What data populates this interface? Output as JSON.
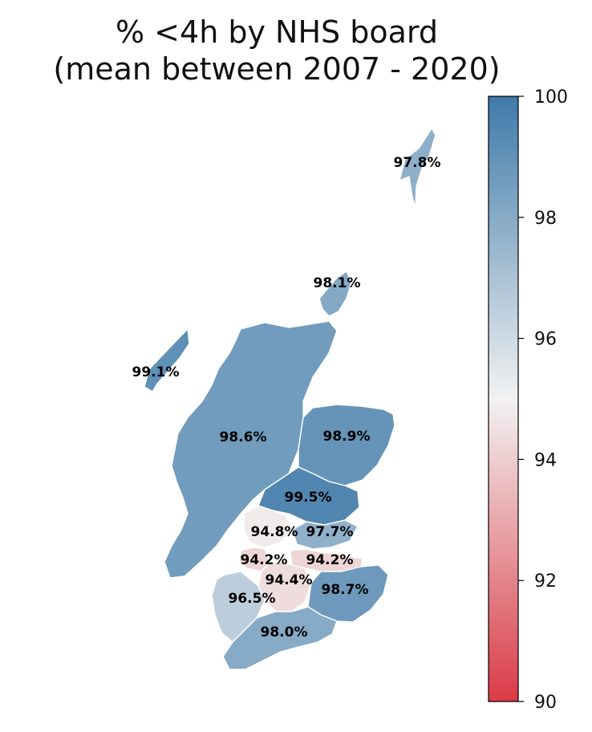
{
  "chart_data": {
    "type": "choropleth",
    "title": "% <4h by NHS board\n(mean between 2007 - 2020)",
    "title_lines": [
      "% <4h by NHS board",
      "(mean between 2007 - 2020)"
    ],
    "value_unit": "%",
    "regions": [
      {
        "value": 97.8,
        "label": "97.8%"
      },
      {
        "value": 98.1,
        "label": "98.1%"
      },
      {
        "value": 99.1,
        "label": "99.1%"
      },
      {
        "value": 98.6,
        "label": "98.6%"
      },
      {
        "value": 98.9,
        "label": "98.9%"
      },
      {
        "value": 99.5,
        "label": "99.5%"
      },
      {
        "value": 94.8,
        "label": "94.8%"
      },
      {
        "value": 97.7,
        "label": "97.7%"
      },
      {
        "value": 94.2,
        "label": "94.2%"
      },
      {
        "value": 94.2,
        "label": "94.2%"
      },
      {
        "value": 94.4,
        "label": "94.4%"
      },
      {
        "value": 98.7,
        "label": "98.7%"
      },
      {
        "value": 96.5,
        "label": "96.5%"
      },
      {
        "value": 98.0,
        "label": "98.0%"
      }
    ],
    "colorbar": {
      "range": [
        90,
        100
      ],
      "ticks": [
        "90",
        "92",
        "94",
        "96",
        "98",
        "100"
      ],
      "tick_values": [
        90,
        92,
        94,
        96,
        98,
        100
      ],
      "colors": {
        "low": "#da3b46",
        "mid": "#f2f2f2",
        "high": "#3f7aa9"
      }
    },
    "grid": false,
    "legend": "colorbar-right"
  }
}
